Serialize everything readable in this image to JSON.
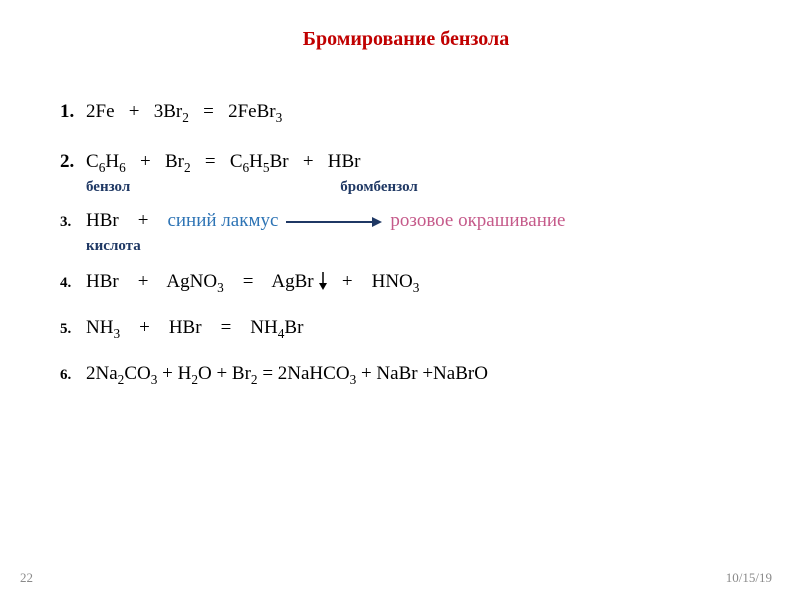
{
  "title": {
    "text": "Бромирование бензола",
    "color": "#c00000",
    "fontsize": 20
  },
  "equations": [
    {
      "num": "1.",
      "parts": [
        "2Fe",
        "   +",
        "   3Br",
        {
          "sub": "2"
        },
        "   =",
        "   2FeBr",
        {
          "sub": "3"
        }
      ],
      "line_gap_after": 28
    },
    {
      "num": "2.",
      "parts": [
        "C",
        {
          "sub": "6"
        },
        "H",
        {
          "sub": "6"
        },
        "   +",
        "   Br",
        {
          "sub": "2"
        },
        "   =",
        "   C",
        {
          "sub": "6"
        },
        "H",
        {
          "sub": "5"
        },
        "Br",
        "   +",
        "   HBr"
      ],
      "sub_label": {
        "segments": [
          {
            "text": "бензол",
            "pad_right": 210
          },
          {
            "text": "бромбензол"
          }
        ],
        "color": "#1f3864",
        "fontsize": 15
      }
    },
    {
      "num": "3.",
      "num_fontsize": 15,
      "parts": [
        "HBr",
        "    +",
        "    ",
        {
          "colored": "синий лакмус",
          "color": "#2e74b5"
        },
        {
          "arrow": true
        },
        {
          "colored": "розовое окрашивание",
          "color": "#c55a8a"
        }
      ],
      "sub_label": {
        "segments": [
          {
            "text": "кислота"
          }
        ],
        "color": "#1f3864",
        "fontsize": 15
      }
    },
    {
      "num": "4.",
      "num_fontsize": 15,
      "parts": [
        "HBr",
        "    +",
        "    AgNO",
        {
          "sub": "3"
        },
        "    =",
        "    AgBr",
        {
          "down_arrow": true
        },
        "   +",
        "    HNO",
        {
          "sub": "3"
        }
      ],
      "line_gap_after": 24
    },
    {
      "num": "5.",
      "num_fontsize": 15,
      "parts": [
        "NH",
        {
          "sub": "3"
        },
        "    +",
        "    HBr",
        "    =",
        "    NH",
        {
          "sub": "4"
        },
        "Br"
      ],
      "line_gap_after": 24
    },
    {
      "num": "6.",
      "num_fontsize": 15,
      "parts": [
        "2Na",
        {
          "sub": "2"
        },
        "CO",
        {
          "sub": "3"
        },
        " + H",
        {
          "sub": "2"
        },
        "O + Br",
        {
          "sub": "2"
        },
        " = 2NaHCO",
        {
          "sub": "3"
        },
        " + NaBr +NaBrO"
      ]
    }
  ],
  "footer": {
    "page": "22",
    "date": "10/15/19",
    "color": "#8a8a8a",
    "fontsize": 13
  },
  "style": {
    "formula_color": "#000000",
    "formula_fontsize": 19,
    "num_fontsize_default": 19,
    "arrow_color": "#1f3864",
    "arrow_length": 96,
    "arrow_stroke": 2,
    "down_arrow_color": "#000000",
    "down_arrow_height": 18,
    "background": "#ffffff"
  }
}
